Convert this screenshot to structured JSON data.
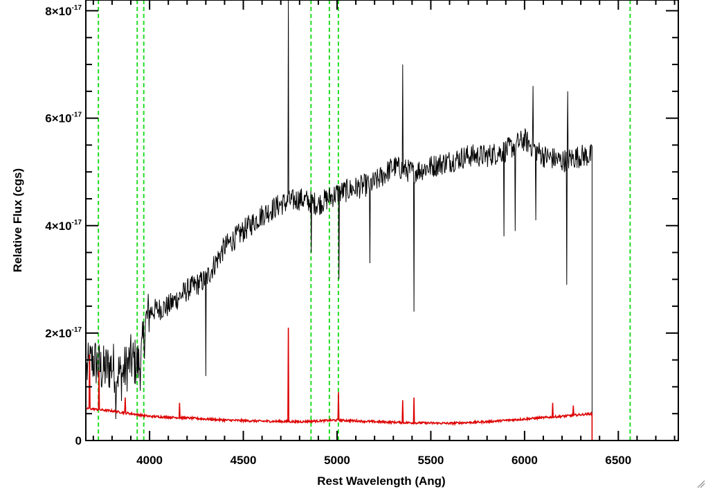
{
  "chart_data": {
    "type": "line",
    "title": "",
    "xlabel": "Rest Wavelength (Ang)",
    "ylabel": "Relative Flux (cgs)",
    "xlim": [
      3660,
      6820
    ],
    "ylim": [
      0,
      8.2e-17
    ],
    "x_ticks": [
      {
        "value": 4000,
        "label": "4000"
      },
      {
        "value": 4500,
        "label": "4500"
      },
      {
        "value": 5000,
        "label": "5000"
      },
      {
        "value": 5500,
        "label": "5500"
      },
      {
        "value": 6000,
        "label": "6000"
      },
      {
        "value": 6500,
        "label": "6500"
      }
    ],
    "y_ticks": [
      {
        "value": 0,
        "mant": "0",
        "exp": ""
      },
      {
        "value": 2e-17,
        "mant": "2×10",
        "exp": "-17"
      },
      {
        "value": 4e-17,
        "mant": "4×10",
        "exp": "-17"
      },
      {
        "value": 6e-17,
        "mant": "6×10",
        "exp": "-17"
      },
      {
        "value": 8e-17,
        "mant": "8×10",
        "exp": "-17"
      }
    ],
    "vertical_markers": [
      3727,
      3934,
      3969,
      4861,
      4959,
      5007,
      6563
    ],
    "series": [
      {
        "color": "#000000",
        "points": [
          [
            3665,
            1.3e-17
          ],
          [
            3700,
            1.5e-17
          ],
          [
            3750,
            1.3e-17
          ],
          [
            3800,
            1.4e-17
          ],
          [
            3850,
            1.2e-17
          ],
          [
            3900,
            1.5e-17
          ],
          [
            3950,
            1.4e-17
          ],
          [
            3980,
            2.2e-17
          ],
          [
            4000,
            2.4e-17
          ],
          [
            4100,
            2.5e-17
          ],
          [
            4200,
            2.8e-17
          ],
          [
            4300,
            3e-17
          ],
          [
            4400,
            3.6e-17
          ],
          [
            4500,
            3.9e-17
          ],
          [
            4600,
            4.2e-17
          ],
          [
            4700,
            4.4e-17
          ],
          [
            4800,
            4.5e-17
          ],
          [
            4900,
            4.4e-17
          ],
          [
            5000,
            4.6e-17
          ],
          [
            5100,
            4.7e-17
          ],
          [
            5200,
            4.8e-17
          ],
          [
            5300,
            5.1e-17
          ],
          [
            5400,
            5e-17
          ],
          [
            5500,
            5.1e-17
          ],
          [
            5600,
            5.2e-17
          ],
          [
            5700,
            5.3e-17
          ],
          [
            5800,
            5.3e-17
          ],
          [
            5900,
            5.4e-17
          ],
          [
            6000,
            5.6e-17
          ],
          [
            6100,
            5.3e-17
          ],
          [
            6200,
            5.2e-17
          ],
          [
            6300,
            5.3e-17
          ],
          [
            6360,
            5.3e-17
          ]
        ],
        "dips": [
          [
            3820,
            4e-18
          ],
          [
            4300,
            1.2e-17
          ],
          [
            4862,
            3.5e-17
          ],
          [
            5010,
            3e-17
          ],
          [
            5175,
            3.3e-17
          ],
          [
            5410,
            2.4e-17
          ],
          [
            5890,
            3.8e-17
          ],
          [
            5950,
            3.9e-17
          ],
          [
            6060,
            4.1e-17
          ],
          [
            6225,
            2.9e-17
          ]
        ],
        "spikes": [
          [
            4740,
            8.2e-17
          ],
          [
            5350,
            7e-17
          ],
          [
            6045,
            6.6e-17
          ],
          [
            6230,
            6.5e-17
          ]
        ]
      },
      {
        "color": "#dd0000",
        "points": [
          [
            3665,
            6e-18
          ],
          [
            3800,
            5.5e-18
          ],
          [
            3900,
            5e-18
          ],
          [
            4000,
            4.5e-18
          ],
          [
            4200,
            4.2e-18
          ],
          [
            4400,
            3.8e-18
          ],
          [
            4600,
            3.6e-18
          ],
          [
            4800,
            3.5e-18
          ],
          [
            5000,
            3.8e-18
          ],
          [
            5200,
            3.5e-18
          ],
          [
            5400,
            3.3e-18
          ],
          [
            5600,
            3.2e-18
          ],
          [
            5800,
            3.5e-18
          ],
          [
            6000,
            4e-18
          ],
          [
            6200,
            4.5e-18
          ],
          [
            6360,
            5e-18
          ]
        ],
        "spikes": [
          [
            3680,
            1.6e-17
          ],
          [
            3730,
            1.3e-17
          ],
          [
            3870,
            8e-18
          ],
          [
            4160,
            7e-18
          ],
          [
            4740,
            2.1e-17
          ],
          [
            5007,
            9e-18
          ],
          [
            5350,
            7.5e-18
          ],
          [
            5410,
            8e-18
          ],
          [
            6150,
            7e-18
          ],
          [
            6260,
            6.5e-18
          ]
        ]
      }
    ]
  }
}
